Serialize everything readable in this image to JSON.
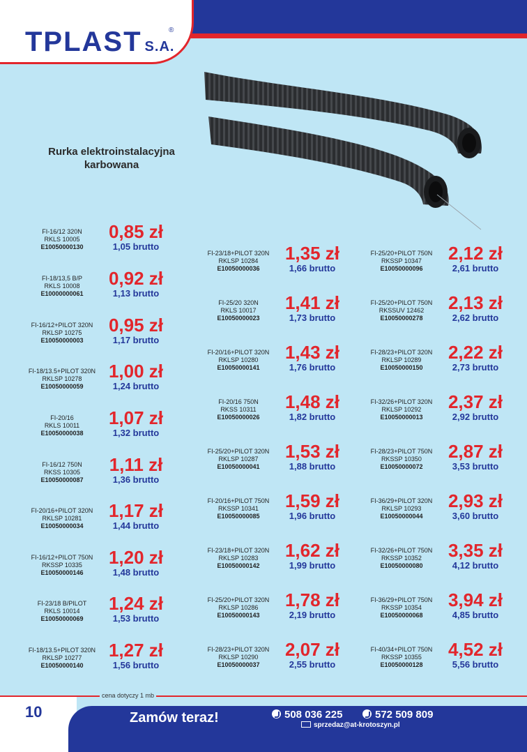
{
  "header": {
    "logo_main": "TPLAST",
    "logo_suffix": "S.A.",
    "logo_reg": "®"
  },
  "product": {
    "title_line1": "Rurka elektroinstalacyjna",
    "title_line2": "karbowana"
  },
  "columns": [
    {
      "items": [
        {
          "model": "FI-16/12 320N",
          "code": "RKLS 10005",
          "ean": "E10050000130",
          "net": "0,85 zł",
          "gross": "1,05 brutto"
        },
        {
          "model": "FI-18/13,5 B/P",
          "code": "RKLS 10008",
          "ean": "E10000000061",
          "net": "0,92 zł",
          "gross": "1,13 brutto"
        },
        {
          "model": "FI-16/12+PILOT 320N",
          "code": "RKLSP 10275",
          "ean": "E10050000003",
          "net": "0,95 zł",
          "gross": "1,17 brutto"
        },
        {
          "model": "FI-18/13.5+PILOT 320N",
          "code": "RKLSP 10278",
          "ean": "E10050000059",
          "net": "1,00 zł",
          "gross": "1,24 brutto"
        },
        {
          "model": "FI-20/16",
          "code": "RKLS 10011",
          "ean": "E10050000038",
          "net": "1,07 zł",
          "gross": "1,32 brutto"
        },
        {
          "model": "FI-16/12 750N",
          "code": "RKSS 10305",
          "ean": "E10050000087",
          "net": "1,11 zł",
          "gross": "1,36 brutto"
        },
        {
          "model": "FI-20/16+PILOT 320N",
          "code": "RKLSP 10281",
          "ean": "E10050000034",
          "net": "1,17 zł",
          "gross": "1,44 brutto"
        },
        {
          "model": "FI-16/12+PILOT 750N",
          "code": "RKSSP 10335",
          "ean": "E10050000146",
          "net": "1,20 zł",
          "gross": "1,48 brutto"
        },
        {
          "model": "FI-23/18 B/PILOT",
          "code": "RKLS 10014",
          "ean": "E10050000069",
          "net": "1,24 zł",
          "gross": "1,53 brutto"
        },
        {
          "model": "FI-18/13.5+PILOT 320N",
          "code": "RKLSP 10277",
          "ean": "E10050000140",
          "net": "1,27 zł",
          "gross": "1,56 brutto"
        }
      ]
    },
    {
      "items": [
        {
          "model": "FI-23/18+PILOT 320N",
          "code": "RKLSP 10284",
          "ean": "E10050000036",
          "net": "1,35 zł",
          "gross": "1,66 brutto"
        },
        {
          "model": "FI-25/20 320N",
          "code": "RKLS 10017",
          "ean": "E10050000023",
          "net": "1,41 zł",
          "gross": "1,73 brutto"
        },
        {
          "model": "FI-20/16+PILOT 320N",
          "code": "RKLSP 10280",
          "ean": "E10050000141",
          "net": "1,43 zł",
          "gross": "1,76 brutto"
        },
        {
          "model": "FI-20/16 750N",
          "code": "RKSS 10311",
          "ean": "E10050000026",
          "net": "1,48 zł",
          "gross": "1,82 brutto"
        },
        {
          "model": "FI-25/20+PILOT 320N",
          "code": "RKLSP 10287",
          "ean": "E10050000041",
          "net": "1,53 zł",
          "gross": "1,88 brutto"
        },
        {
          "model": "FI-20/16+PILOT 750N",
          "code": "RKSSP 10341",
          "ean": "E10050000085",
          "net": "1,59 zł",
          "gross": "1,96 brutto"
        },
        {
          "model": "FI-23/18+PILOT 320N",
          "code": "RKLSP 10283",
          "ean": "E10050000142",
          "net": "1,62 zł",
          "gross": "1,99 brutto"
        },
        {
          "model": "FI-25/20+PILOT 320N",
          "code": "RKLSP 10286",
          "ean": "E10050000143",
          "net": "1,78 zł",
          "gross": "2,19 brutto"
        },
        {
          "model": "FI-28/23+PILOT 320N",
          "code": "RKLSP 10290",
          "ean": "E10050000037",
          "net": "2,07 zł",
          "gross": "2,55 brutto"
        }
      ]
    },
    {
      "items": [
        {
          "model": "FI-25/20+PILOT 750N",
          "code": "RKSSP 10347",
          "ean": "E10050000096",
          "net": "2,12 zł",
          "gross": "2,61 brutto"
        },
        {
          "model": "FI-25/20+PILOT 750N",
          "code": "RKSSUV 12462",
          "ean": "E10050000278",
          "net": "2,13 zł",
          "gross": "2,62 brutto"
        },
        {
          "model": "FI-28/23+PILOT 320N",
          "code": "RKLSP 10289",
          "ean": "E10050000150",
          "net": "2,22 zł",
          "gross": "2,73 brutto"
        },
        {
          "model": "FI-32/26+PILOT 320N",
          "code": "RKLSP 10292",
          "ean": "E10050000013",
          "net": "2,37 zł",
          "gross": "2,92 brutto"
        },
        {
          "model": "FI-28/23+PILOT 750N",
          "code": "RKSSP 10350",
          "ean": "E10050000072",
          "net": "2,87 zł",
          "gross": "3,53 brutto"
        },
        {
          "model": "FI-36/29+PILOT 320N",
          "code": "RKLSP 10293",
          "ean": "E10050000044",
          "net": "2,93 zł",
          "gross": "3,60 brutto"
        },
        {
          "model": "FI-32/26+PILOT 750N",
          "code": "RKSSP 10352",
          "ean": "E10050000080",
          "net": "3,35 zł",
          "gross": "4,12 brutto"
        },
        {
          "model": "FI-36/29+PILOT 750N",
          "code": "RKSSP 10354",
          "ean": "E10050000068",
          "net": "3,94 zł",
          "gross": "4,85 brutto"
        },
        {
          "model": "FI-40/34+PILOT 750N",
          "code": "RKSSP 10355",
          "ean": "E10050000128",
          "net": "4,52 zł",
          "gross": "5,56 brutto"
        }
      ]
    }
  ],
  "footer": {
    "note": "cena dotyczy 1 mb",
    "page_number": "10",
    "order_cta": "Zamów teraz!",
    "phone1": "508 036 225",
    "phone2": "572 509 809",
    "email": "sprzedaz@at-krotoszyn.pl"
  },
  "colors": {
    "accent_blue": "#23379a",
    "accent_red": "#e2262c",
    "background": "#bfe6f5"
  }
}
